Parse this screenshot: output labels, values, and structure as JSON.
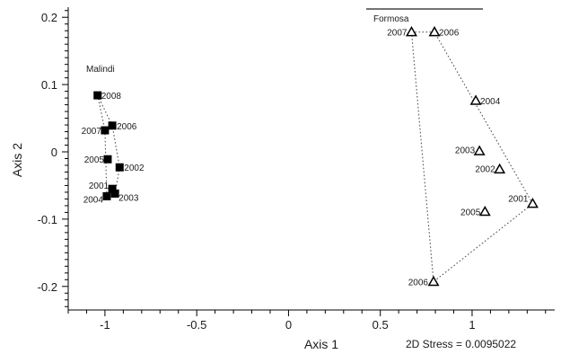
{
  "chart_data": {
    "type": "scatter",
    "title": "",
    "xlabel": "Axis 1",
    "ylabel": "Axis 2",
    "xlim": [
      -1.2,
      1.45
    ],
    "ylim": [
      -0.235,
      0.215
    ],
    "x_ticks": [
      -1,
      -0.5,
      0,
      0.5,
      1
    ],
    "x_tick_labels": [
      "-1",
      "-0.5",
      "0",
      "0.5",
      "1"
    ],
    "y_ticks": [
      -0.2,
      -0.1,
      0,
      0.1,
      0.2
    ],
    "y_tick_labels": [
      "-0.2",
      "-0.1",
      "0",
      "0.1",
      "0.2"
    ],
    "grid": false,
    "annotation": "2D Stress = 0.0095022",
    "groups": [
      {
        "name": "Malindi",
        "marker": "filled-square",
        "color": "#000000",
        "points": [
          {
            "label": "2008",
            "x": -1.04,
            "y": 0.084
          },
          {
            "label": "2006",
            "x": -0.96,
            "y": 0.039
          },
          {
            "label": "2007",
            "x": -1.0,
            "y": 0.032
          },
          {
            "label": "2005",
            "x": -0.985,
            "y": -0.011
          },
          {
            "label": "2002",
            "x": -0.92,
            "y": -0.023
          },
          {
            "label": "2001",
            "x": -0.96,
            "y": -0.055
          },
          {
            "label": "2003",
            "x": -0.945,
            "y": -0.062
          },
          {
            "label": "2004",
            "x": -0.99,
            "y": -0.066
          }
        ],
        "hull": [
          "2008",
          "2006",
          "2002",
          "2003",
          "2004",
          "2007"
        ]
      },
      {
        "name": "Formosa",
        "marker": "open-triangle",
        "color": "#000000",
        "points": [
          {
            "label": "2007",
            "x": 0.67,
            "y": 0.178
          },
          {
            "label": "2006",
            "x": 0.795,
            "y": 0.178
          },
          {
            "label": "2004",
            "x": 1.02,
            "y": 0.076
          },
          {
            "label": "2003",
            "x": 1.04,
            "y": 0.001
          },
          {
            "label": "2002",
            "x": 1.15,
            "y": -0.026
          },
          {
            "label": "2001",
            "x": 1.33,
            "y": -0.077
          },
          {
            "label": "2005",
            "x": 1.07,
            "y": -0.089
          },
          {
            "label": "2006",
            "x": 0.79,
            "y": -0.193
          }
        ],
        "hull": [
          0,
          1,
          5,
          7
        ]
      }
    ]
  }
}
